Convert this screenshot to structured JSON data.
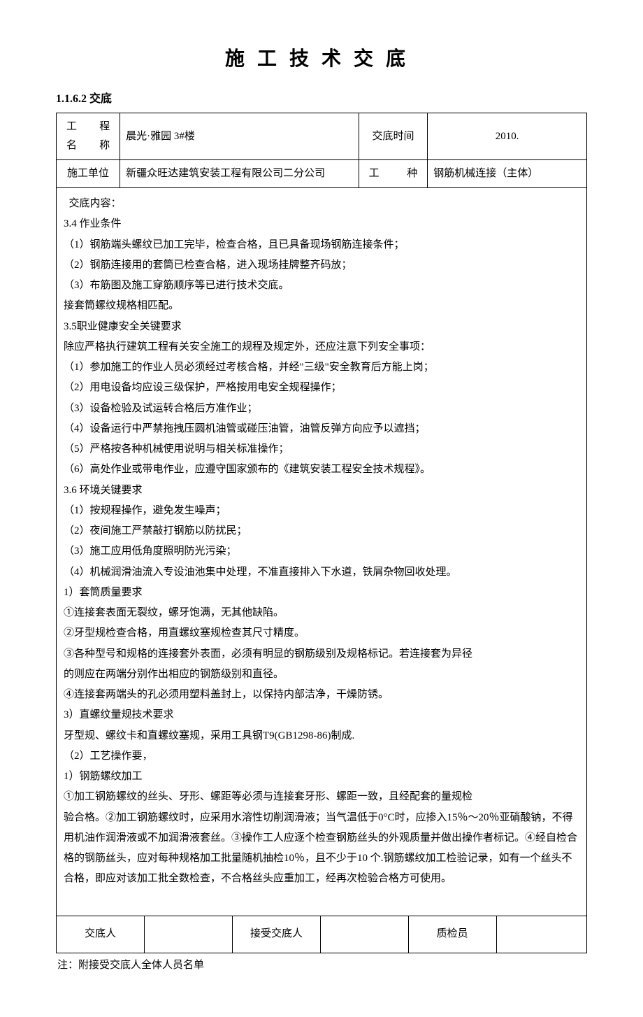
{
  "doc": {
    "title": "施工技术交底",
    "section_number": "1.1.6.2 交底",
    "header": {
      "col1_label": "工　　程\n名　　称",
      "project_name": "晨光·雅园 3#楼",
      "col3_label": "交底时间",
      "date": "2010.",
      "row2_col1": "施工单位",
      "construction_unit": "新疆众旺达建筑安装工程有限公司二分公司",
      "row2_col3": "工　　种",
      "work_type": "钢筋机械连接（主体）"
    },
    "body": {
      "heading": "交底内容：",
      "lines": [
        "3.4 作业条件",
        "（1）钢筋端头螺纹已加工完毕，检查合格，且已具备现场钢筋连接条件；",
        "（2）钢筋连接用的套筒已检查合格，进入现场挂牌整齐码放；",
        "（3）布筋图及施工穿筋顺序等已进行技术交底。",
        "接套筒螺纹规格相匹配。",
        "3.5职业健康安全关键要求",
        "除应严格执行建筑工程有关安全施工的规程及规定外，还应注意下列安全事项：",
        "（1）参加施工的作业人员必须经过考核合格，并经\"三级\"安全教育后方能上岗；",
        "（2）用电设备均应设三级保护，严格按用电安全规程操作；",
        "（3）设备检验及试运转合格后方准作业；",
        "（4）设备运行中严禁拖拽压圆机油管或碰压油管，油管反弹方向应予以遮挡；",
        "（5）严格按各种机械使用说明与相关标准操作；",
        "（6）高处作业或带电作业，应遵守国家颁布的《建筑安装工程安全技术规程》。",
        "3.6 环境关键要求",
        "（1）按规程操作，避免发生噪声；",
        "（2）夜间施工严禁敲打钢筋以防扰民；",
        "（3）施工应用低角度照明防光污染；",
        "（4）机械润滑油流入专设油池集中处理，不准直接排入下水道，铁屑杂物回收处理。",
        "1）套筒质量要求",
        "①连接套表面无裂纹，螺牙饱满，无其他缺陷。",
        "②牙型规检查合格，用直螺纹塞规检查其尺寸精度。",
        "③各种型号和规格的连接套外表面，必须有明显的钢筋级别及规格标记。若连接套为异径",
        "的则应在两端分别作出相应的钢筋级别和直径。",
        "④连接套两端头的孔必须用塑料盖封上，以保持内部洁净，干燥防锈。",
        "3）直螺纹量规技术要求",
        "牙型规、螺纹卡和直螺纹塞规，采用工具钢T9(GB1298-86)制成.",
        "（2）工艺操作要，",
        "1）钢筋螺纹加工",
        "①加工钢筋螺纹的丝头、牙形、螺距等必须与连接套牙形、螺距一致，且经配套的量规检",
        "验合格。②加工钢筋螺纹时，应采用水溶性切削润滑液；当气温低于0°C时，应掺入15％～20％亚硝酸钠，不得用机油作润滑液或不加润滑液套丝。③操作工人应逐个检查钢筋丝头的外观质量并做出操作者标记。④经自检合格的钢筋丝头，应对每种规格加工批量随机抽检10％，且不少于10 个.钢筋螺纹加工检验记录，如有一个丝头不合格，即应对该加工批全数检查，不合格丝头应重加工，经再次检验合格方可使用。",
        ""
      ]
    },
    "signatures": {
      "c1": "交底人",
      "c2": "",
      "c3": "接受交底人",
      "c4": "",
      "c5": "质检员",
      "c6": ""
    },
    "footnote": "注：附接受交底人全体人员名单"
  }
}
